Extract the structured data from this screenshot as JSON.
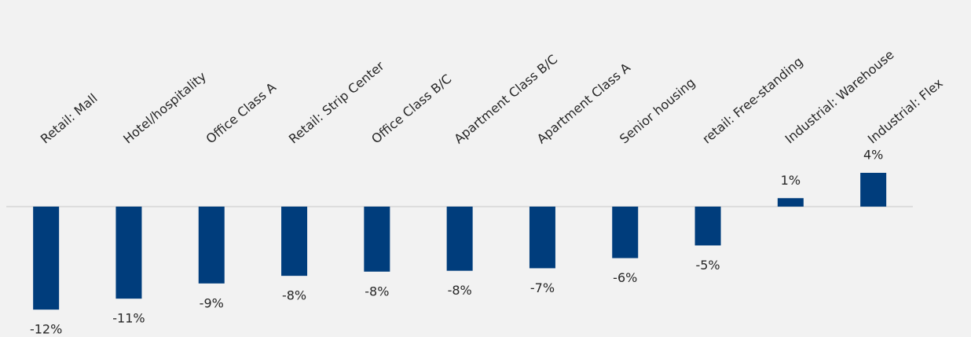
{
  "chart_data": {
    "type": "bar",
    "categories": [
      "Retail: Mall",
      "Hotel/hospitality",
      "Office Class A",
      "Retail: Strip Center",
      "Office Class B/C",
      "Apartment Class B/C",
      "Apartment Class A",
      "Senior housing",
      "retail: Free-standing",
      "Industrial: Warehouse",
      "Industrial: Flex"
    ],
    "values": [
      -12.2,
      -10.9,
      -9.1,
      -8.2,
      -7.7,
      -7.6,
      -7.3,
      -6.1,
      -4.6,
      1.0,
      4.0
    ],
    "value_labels": [
      "-12%",
      "-11%",
      "-9%",
      "-8%",
      "-8%",
      "-8%",
      "-7%",
      "-6%",
      "-5%",
      "1%",
      "4%"
    ],
    "color": "#003d7c",
    "ylim": [
      -13,
      5
    ]
  }
}
